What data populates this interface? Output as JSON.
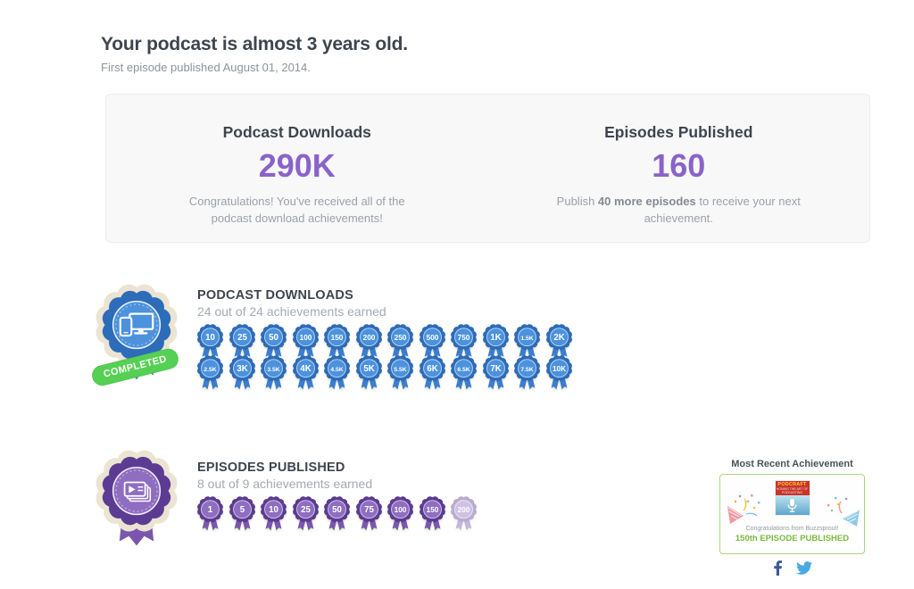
{
  "header": {
    "title": "Your podcast is almost 3 years old.",
    "subtitle": "First episode published August 01, 2014."
  },
  "stats": {
    "downloads": {
      "label": "Podcast Downloads",
      "value": "290K",
      "description": "Congratulations! You've received all of the podcast download achievements!"
    },
    "episodes": {
      "label": "Episodes Published",
      "value": "160",
      "description_parts": {
        "pre": "Publish ",
        "bold": "40 more episodes",
        "post": " to receive your next achievement."
      }
    }
  },
  "sections": {
    "downloads": {
      "title": "PODCAST DOWNLOADS",
      "progress": "24 out of 24 achievements earned",
      "completed_label": "COMPLETED",
      "earned_count": 24,
      "badges": [
        "10",
        "25",
        "50",
        "100",
        "150",
        "200",
        "250",
        "500",
        "750",
        "1K",
        "1.5K",
        "2K",
        "2.5K",
        "3K",
        "3.5K",
        "4K",
        "4.5K",
        "5K",
        "5.5K",
        "6K",
        "6.5K",
        "7K",
        "7.5K",
        "10K"
      ]
    },
    "episodes": {
      "title": "EPISODES PUBLISHED",
      "progress": "8 out of 9 achievements earned",
      "earned_count": 8,
      "badges": [
        "1",
        "5",
        "10",
        "25",
        "50",
        "75",
        "100",
        "150",
        "200"
      ]
    }
  },
  "recent": {
    "title": "Most Recent Achievement",
    "congrats": "Congratulations from Buzzsprout!",
    "achievement": "150th EPISODE PUBLISHED",
    "artwork_title": "PODCRAFT",
    "artwork_subtitle": "HONING THE ART OF PODCASTING",
    "social": [
      "facebook",
      "twitter"
    ]
  },
  "colors": {
    "accent_purple": "#8a63c9",
    "badge_blue": {
      "dark": "#2d6cb8",
      "light": "#4c92dd",
      "ribbon": "#3a7ecf"
    },
    "badge_purple": {
      "dark": "#5b3c92",
      "light": "#8f6ec1",
      "ribbon": "#7a57ad"
    },
    "badge_halo": "#ebe4d3",
    "completed_green": "#55d053",
    "achievement_green": "#7cb93e",
    "card_border_green": "#abd77f",
    "facebook_blue": "#3b5998",
    "twitter_blue": "#4aa9e0"
  }
}
